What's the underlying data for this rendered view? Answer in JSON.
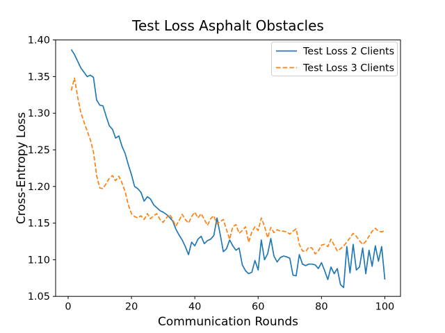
{
  "figure": {
    "title": "Test Loss Asphalt Obstacles",
    "xlabel": "Communication Rounds",
    "ylabel": "Cross-Entropy Loss",
    "background": "#ffffff",
    "spine_color": "#000000",
    "legend_border_color": "#cccccc"
  },
  "chart_data": {
    "type": "line",
    "title": "Test Loss Asphalt Obstacles",
    "xlabel": "Communication Rounds",
    "ylabel": "Cross-Entropy Loss",
    "xlim": [
      -3.95,
      104.95
    ],
    "ylim": [
      1.05,
      1.4
    ],
    "xticks": [
      0,
      20,
      40,
      60,
      80,
      100
    ],
    "yticks": [
      1.05,
      1.1,
      1.15,
      1.2,
      1.25,
      1.3,
      1.35,
      1.4
    ],
    "grid": false,
    "legend_position": "upper right",
    "series": [
      {
        "name": "Test Loss 2 Clients",
        "color": "#1f77b4",
        "line_style": "solid",
        "x_start": 1,
        "x_step": 1,
        "values": [
          1.387,
          1.38,
          1.371,
          1.362,
          1.356,
          1.35,
          1.352,
          1.349,
          1.318,
          1.311,
          1.31,
          1.296,
          1.283,
          1.278,
          1.266,
          1.269,
          1.255,
          1.245,
          1.23,
          1.216,
          1.2,
          1.197,
          1.192,
          1.18,
          1.186,
          1.183,
          1.175,
          1.171,
          1.167,
          1.165,
          1.162,
          1.158,
          1.153,
          1.142,
          1.134,
          1.127,
          1.118,
          1.107,
          1.124,
          1.119,
          1.128,
          1.132,
          1.122,
          1.126,
          1.128,
          1.133,
          1.157,
          1.135,
          1.111,
          1.115,
          1.127,
          1.119,
          1.113,
          1.116,
          1.093,
          1.085,
          1.081,
          1.083,
          1.099,
          1.086,
          1.127,
          1.1,
          1.108,
          1.129,
          1.105,
          1.097,
          1.103,
          1.105,
          1.104,
          1.102,
          1.079,
          1.078,
          1.107,
          1.094,
          1.092,
          1.094,
          1.094,
          1.093,
          1.088,
          1.096,
          1.085,
          1.073,
          1.09,
          1.081,
          1.088,
          1.066,
          1.062,
          1.118,
          1.082,
          1.121,
          1.086,
          1.09,
          1.116,
          1.081,
          1.113,
          1.091,
          1.119,
          1.098,
          1.118,
          1.073
        ]
      },
      {
        "name": "Test Loss 3 Clients",
        "color": "#ff7f0e",
        "line_style": "dashed",
        "x_start": 1,
        "x_step": 1,
        "values": [
          1.331,
          1.348,
          1.322,
          1.301,
          1.288,
          1.276,
          1.264,
          1.247,
          1.215,
          1.198,
          1.197,
          1.204,
          1.211,
          1.215,
          1.208,
          1.214,
          1.205,
          1.193,
          1.175,
          1.163,
          1.159,
          1.157,
          1.16,
          1.155,
          1.163,
          1.156,
          1.16,
          1.163,
          1.155,
          1.151,
          1.157,
          1.162,
          1.155,
          1.146,
          1.153,
          1.162,
          1.155,
          1.15,
          1.159,
          1.165,
          1.157,
          1.163,
          1.155,
          1.147,
          1.156,
          1.16,
          1.149,
          1.152,
          1.155,
          1.141,
          1.128,
          1.145,
          1.148,
          1.136,
          1.14,
          1.145,
          1.124,
          1.138,
          1.145,
          1.14,
          1.157,
          1.146,
          1.13,
          1.144,
          1.137,
          1.141,
          1.139,
          1.139,
          1.138,
          1.135,
          1.139,
          1.142,
          1.121,
          1.112,
          1.111,
          1.117,
          1.116,
          1.108,
          1.112,
          1.12,
          1.121,
          1.118,
          1.128,
          1.12,
          1.112,
          1.115,
          1.119,
          1.124,
          1.13,
          1.136,
          1.132,
          1.126,
          1.121,
          1.125,
          1.132,
          1.139,
          1.143,
          1.139,
          1.138,
          1.14
        ]
      }
    ]
  }
}
